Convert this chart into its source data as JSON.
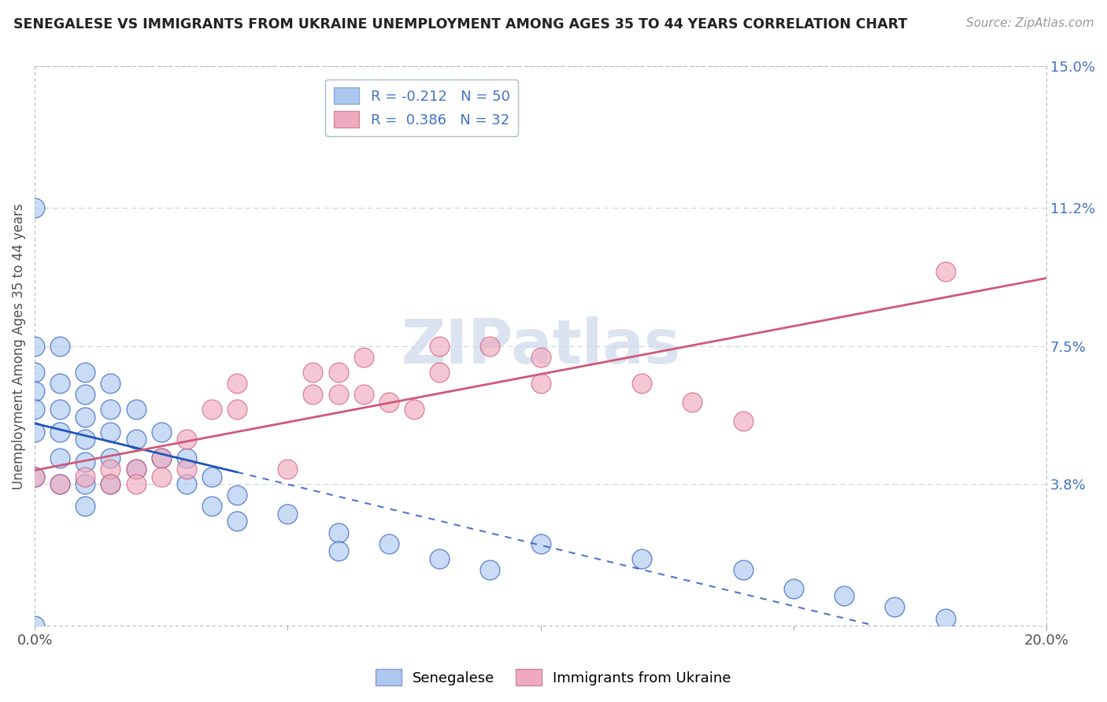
{
  "title": "SENEGALESE VS IMMIGRANTS FROM UKRAINE UNEMPLOYMENT AMONG AGES 35 TO 44 YEARS CORRELATION CHART",
  "source": "Source: ZipAtlas.com",
  "ylabel": "Unemployment Among Ages 35 to 44 years",
  "xlim": [
    0.0,
    0.2
  ],
  "ylim": [
    0.0,
    0.15
  ],
  "y_ticks_right": [
    0.0,
    0.038,
    0.075,
    0.112,
    0.15
  ],
  "y_tick_labels_right": [
    "",
    "3.8%",
    "7.5%",
    "11.2%",
    "15.0%"
  ],
  "legend1_label": "R = -0.212   N = 50",
  "legend2_label": "R =  0.386   N = 32",
  "legend1_face": "#adc8f0",
  "legend2_face": "#f0aabf",
  "line1_color": "#2255bb",
  "line2_color": "#d05878",
  "background_color": "#ffffff",
  "grid_color": "#c8d4e8",
  "watermark_color": "#ccd8ec",
  "senegalese_x": [
    0.0,
    0.0,
    0.0,
    0.0,
    0.0,
    0.0,
    0.0,
    0.005,
    0.005,
    0.005,
    0.005,
    0.005,
    0.005,
    0.01,
    0.01,
    0.01,
    0.01,
    0.01,
    0.01,
    0.01,
    0.015,
    0.015,
    0.015,
    0.015,
    0.015,
    0.02,
    0.02,
    0.02,
    0.025,
    0.025,
    0.03,
    0.03,
    0.035,
    0.035,
    0.04,
    0.04,
    0.05,
    0.06,
    0.06,
    0.07,
    0.08,
    0.09,
    0.1,
    0.12,
    0.14,
    0.15,
    0.16,
    0.17,
    0.18,
    0.0
  ],
  "senegalese_y": [
    0.112,
    0.075,
    0.068,
    0.063,
    0.058,
    0.052,
    0.04,
    0.075,
    0.065,
    0.058,
    0.052,
    0.045,
    0.038,
    0.068,
    0.062,
    0.056,
    0.05,
    0.044,
    0.038,
    0.032,
    0.065,
    0.058,
    0.052,
    0.045,
    0.038,
    0.058,
    0.05,
    0.042,
    0.052,
    0.045,
    0.045,
    0.038,
    0.04,
    0.032,
    0.035,
    0.028,
    0.03,
    0.025,
    0.02,
    0.022,
    0.018,
    0.015,
    0.022,
    0.018,
    0.015,
    0.01,
    0.008,
    0.005,
    0.002,
    0.0
  ],
  "ukraine_x": [
    0.0,
    0.005,
    0.01,
    0.015,
    0.015,
    0.02,
    0.02,
    0.025,
    0.025,
    0.03,
    0.03,
    0.035,
    0.04,
    0.04,
    0.05,
    0.055,
    0.055,
    0.06,
    0.06,
    0.065,
    0.065,
    0.07,
    0.075,
    0.08,
    0.08,
    0.09,
    0.1,
    0.1,
    0.12,
    0.13,
    0.14,
    0.18
  ],
  "ukraine_y": [
    0.04,
    0.038,
    0.04,
    0.042,
    0.038,
    0.042,
    0.038,
    0.045,
    0.04,
    0.05,
    0.042,
    0.058,
    0.065,
    0.058,
    0.042,
    0.068,
    0.062,
    0.068,
    0.062,
    0.072,
    0.062,
    0.06,
    0.058,
    0.075,
    0.068,
    0.075,
    0.072,
    0.065,
    0.065,
    0.06,
    0.055,
    0.095
  ],
  "sen_line_xmax_solid": 0.04,
  "sen_line_xmax_dash": 0.2
}
